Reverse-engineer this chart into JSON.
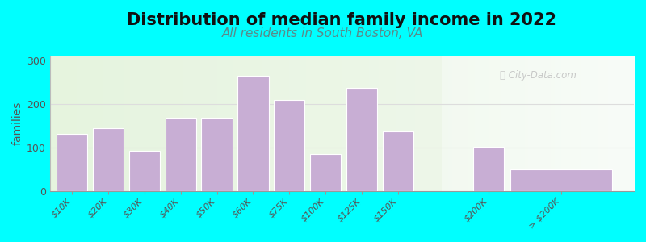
{
  "title": "Distribution of median family income in 2022",
  "subtitle": "All residents in South Boston, VA",
  "ylabel": "families",
  "bar_labels": [
    "$10K",
    "$20K",
    "$30K",
    "$40K",
    "$50K",
    "$60K",
    "$75K",
    "$100K",
    "$125K",
    "$150K",
    "$200K",
    "> $200K"
  ],
  "bar_heights": [
    132,
    145,
    93,
    168,
    168,
    265,
    210,
    85,
    238,
    137,
    101,
    50
  ],
  "bar_color": "#c8aed4",
  "bg_color": "#00ffff",
  "title_fontsize": 15,
  "subtitle_fontsize": 11,
  "subtitle_color": "#5a8a8a",
  "ylabel_fontsize": 10,
  "ylim": [
    0,
    310
  ],
  "yticks": [
    0,
    100,
    200,
    300
  ],
  "watermark": "City-Data.com",
  "tick_fontsize": 8,
  "title_color": "#111111",
  "grid_color": "#dddddd",
  "plot_left_color": "#e8f5e2",
  "plot_right_color": "#f5f8f0"
}
